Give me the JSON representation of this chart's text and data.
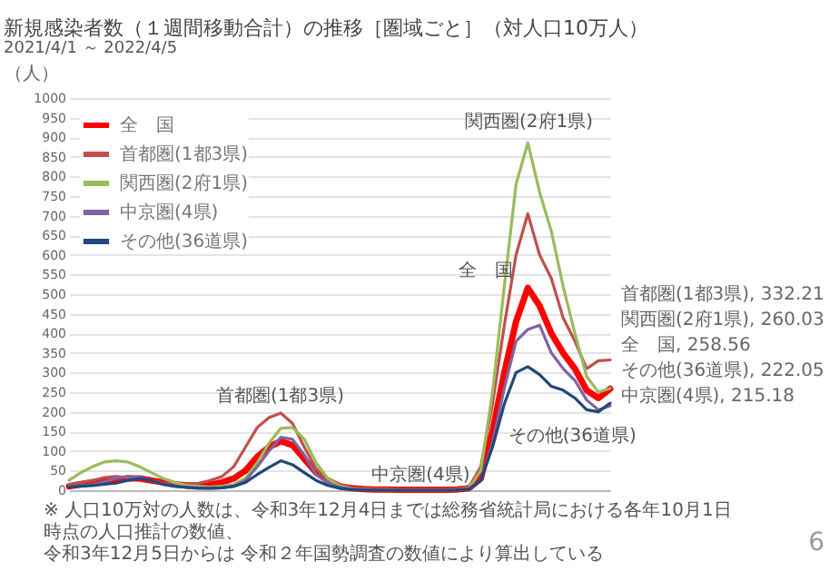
{
  "chart_data": {
    "type": "line",
    "title": "新規感染者数（１週間移動合計）の推移［圏域ごと］（対人口10万人）",
    "subtitle": "2021/4/1 ～ 2022/4/5",
    "ylabel": "（人）",
    "categories": [
      null,
      null,
      null,
      null,
      null,
      null,
      null,
      null,
      null,
      null,
      null,
      null,
      null,
      null,
      null,
      null,
      null,
      null,
      null,
      null,
      null,
      null,
      null,
      null,
      null,
      null,
      null,
      null,
      null,
      null,
      null,
      null,
      null,
      null,
      null,
      null,
      null,
      null,
      null,
      null,
      null,
      null,
      null,
      null,
      null,
      null,
      null
    ],
    "ylim": [
      0,
      1000
    ],
    "yticks": [
      0,
      50,
      100,
      150,
      200,
      250,
      300,
      350,
      400,
      450,
      500,
      550,
      600,
      650,
      700,
      750,
      800,
      850,
      900,
      950,
      1000
    ],
    "series": [
      {
        "name": "全　国",
        "color": "#ff0000",
        "values": [
          10,
          15,
          20,
          25,
          28,
          30,
          30,
          25,
          20,
          15,
          12,
          12,
          14,
          20,
          30,
          50,
          85,
          110,
          125,
          115,
          80,
          45,
          25,
          10,
          5,
          3,
          2,
          2,
          1,
          1,
          1,
          1,
          1,
          2,
          5,
          30,
          150,
          300,
          430,
          516,
          470,
          400,
          350,
          310,
          255,
          235,
          258.56
        ]
      },
      {
        "name": "首都圏(1都3県)",
        "color": "#c0504d",
        "values": [
          15,
          20,
          25,
          32,
          35,
          32,
          30,
          25,
          18,
          15,
          15,
          18,
          25,
          35,
          60,
          110,
          160,
          185,
          197,
          170,
          110,
          55,
          25,
          10,
          4,
          2,
          2,
          1,
          1,
          1,
          1,
          1,
          1,
          2,
          8,
          60,
          220,
          420,
          600,
          705,
          600,
          540,
          440,
          380,
          310,
          330,
          332.21
        ]
      },
      {
        "name": "関西圏(2府1県)",
        "color": "#9bbb59",
        "values": [
          25,
          45,
          60,
          72,
          75,
          72,
          60,
          45,
          30,
          20,
          12,
          10,
          8,
          10,
          15,
          30,
          70,
          120,
          158,
          160,
          130,
          70,
          30,
          12,
          5,
          3,
          2,
          2,
          1,
          1,
          1,
          1,
          1,
          2,
          5,
          50,
          250,
          520,
          780,
          886,
          760,
          660,
          520,
          400,
          290,
          250,
          260.03
        ]
      },
      {
        "name": "中京圏(4県)",
        "color": "#8064a2",
        "values": [
          8,
          12,
          15,
          22,
          30,
          35,
          33,
          25,
          15,
          10,
          8,
          6,
          5,
          6,
          10,
          25,
          60,
          100,
          135,
          130,
          90,
          40,
          18,
          8,
          3,
          2,
          1,
          1,
          0,
          0,
          0,
          0,
          0,
          1,
          3,
          25,
          120,
          260,
          380,
          410,
          421,
          350,
          310,
          280,
          230,
          205,
          215.18
        ]
      },
      {
        "name": "その他(36道県)",
        "color": "#1f497d",
        "values": [
          8,
          10,
          12,
          15,
          18,
          25,
          30,
          25,
          15,
          10,
          7,
          5,
          5,
          6,
          10,
          20,
          40,
          58,
          75,
          65,
          45,
          25,
          12,
          5,
          2,
          1,
          1,
          0,
          0,
          0,
          0,
          0,
          0,
          1,
          3,
          25,
          110,
          220,
          300,
          315,
          295,
          265,
          255,
          235,
          205,
          200,
          222.05
        ]
      }
    ],
    "annotations": [
      "関西圏(2府1県)",
      "全　国",
      "その他(36道県)",
      "首都圏(1都3県)",
      "中京圏(4県)",
      "首都圏(1都3県), 332.21",
      "関西圏(2府1県), 260.03",
      "全　国, 258.56",
      "その他(36道県), 222.05",
      "中京圏(4県), 215.18",
      "※ 人口10万対の人数は、令和3年12月4日までは総務省統計局における各年10月1日時点の人口推計の数値、",
      "令和3年12月5日からは 令和２年国勢調査の数値により算出している",
      "6"
    ],
    "grid": "y",
    "legend": "top left",
    "tick_labels": "y"
  }
}
